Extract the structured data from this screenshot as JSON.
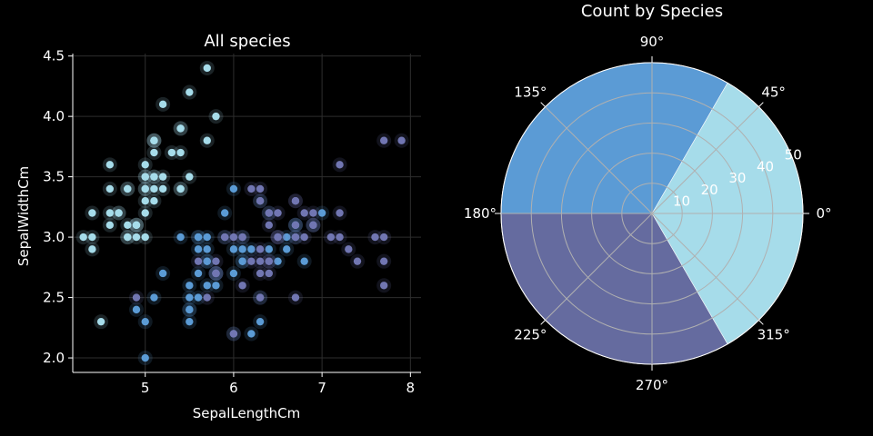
{
  "chart_data": [
    {
      "type": "scatter",
      "title": "All species",
      "xlabel": "SepalLengthCm",
      "ylabel": "SepalWidthCm",
      "xlim": [
        4.18,
        8.12
      ],
      "ylim": [
        1.88,
        4.52
      ],
      "xticks": [
        5,
        6,
        7,
        8
      ],
      "yticks": [
        2.0,
        2.5,
        3.0,
        3.5,
        4.0,
        4.5
      ],
      "xtick_labels": [
        "5",
        "6",
        "7",
        "8"
      ],
      "ytick_labels": [
        "2.0",
        "2.5",
        "3.0",
        "3.5",
        "4.0",
        "4.5"
      ],
      "grid": true,
      "series": [
        {
          "color": "#a6dcea",
          "points": [
            [
              5.1,
              3.5
            ],
            [
              4.9,
              3.0
            ],
            [
              4.7,
              3.2
            ],
            [
              4.6,
              3.1
            ],
            [
              5.0,
              3.6
            ],
            [
              5.4,
              3.9
            ],
            [
              4.6,
              3.4
            ],
            [
              5.0,
              3.4
            ],
            [
              4.4,
              2.9
            ],
            [
              4.9,
              3.1
            ],
            [
              5.4,
              3.7
            ],
            [
              4.8,
              3.4
            ],
            [
              4.8,
              3.0
            ],
            [
              4.3,
              3.0
            ],
            [
              5.8,
              4.0
            ],
            [
              5.7,
              4.4
            ],
            [
              5.4,
              3.9
            ],
            [
              5.1,
              3.5
            ],
            [
              5.7,
              3.8
            ],
            [
              5.1,
              3.8
            ],
            [
              5.4,
              3.4
            ],
            [
              5.1,
              3.7
            ],
            [
              4.6,
              3.6
            ],
            [
              5.1,
              3.3
            ],
            [
              4.8,
              3.4
            ],
            [
              5.0,
              3.0
            ],
            [
              5.0,
              3.4
            ],
            [
              5.2,
              3.5
            ],
            [
              5.2,
              3.4
            ],
            [
              4.7,
              3.2
            ],
            [
              4.8,
              3.1
            ],
            [
              5.4,
              3.4
            ],
            [
              5.2,
              4.1
            ],
            [
              5.5,
              4.2
            ],
            [
              4.9,
              3.1
            ],
            [
              5.0,
              3.2
            ],
            [
              5.5,
              3.5
            ],
            [
              4.9,
              3.1
            ],
            [
              4.4,
              3.0
            ],
            [
              5.1,
              3.4
            ],
            [
              5.0,
              3.5
            ],
            [
              4.5,
              2.3
            ],
            [
              4.4,
              3.2
            ],
            [
              5.0,
              3.5
            ],
            [
              5.1,
              3.8
            ],
            [
              4.8,
              3.0
            ],
            [
              5.1,
              3.8
            ],
            [
              4.6,
              3.2
            ],
            [
              5.3,
              3.7
            ],
            [
              5.0,
              3.3
            ]
          ]
        },
        {
          "color": "#5b9bd5",
          "points": [
            [
              7.0,
              3.2
            ],
            [
              6.4,
              3.2
            ],
            [
              6.9,
              3.1
            ],
            [
              5.5,
              2.3
            ],
            [
              6.5,
              2.8
            ],
            [
              5.7,
              2.8
            ],
            [
              6.3,
              3.3
            ],
            [
              4.9,
              2.4
            ],
            [
              6.6,
              2.9
            ],
            [
              5.2,
              2.7
            ],
            [
              5.0,
              2.0
            ],
            [
              5.9,
              3.0
            ],
            [
              6.0,
              2.2
            ],
            [
              6.1,
              2.9
            ],
            [
              5.6,
              2.9
            ],
            [
              6.7,
              3.1
            ],
            [
              5.6,
              3.0
            ],
            [
              5.8,
              2.7
            ],
            [
              6.2,
              2.2
            ],
            [
              5.6,
              2.5
            ],
            [
              5.9,
              3.2
            ],
            [
              6.1,
              2.8
            ],
            [
              6.3,
              2.5
            ],
            [
              6.1,
              2.8
            ],
            [
              6.4,
              2.9
            ],
            [
              6.6,
              3.0
            ],
            [
              6.8,
              2.8
            ],
            [
              6.7,
              3.0
            ],
            [
              6.0,
              2.9
            ],
            [
              5.7,
              2.6
            ],
            [
              5.5,
              2.4
            ],
            [
              5.5,
              2.4
            ],
            [
              5.8,
              2.7
            ],
            [
              6.0,
              2.7
            ],
            [
              5.4,
              3.0
            ],
            [
              6.0,
              3.4
            ],
            [
              6.7,
              3.1
            ],
            [
              6.3,
              2.3
            ],
            [
              5.6,
              3.0
            ],
            [
              5.5,
              2.5
            ],
            [
              5.5,
              2.6
            ],
            [
              6.1,
              3.0
            ],
            [
              5.8,
              2.6
            ],
            [
              5.0,
              2.3
            ],
            [
              5.6,
              2.7
            ],
            [
              5.7,
              3.0
            ],
            [
              5.7,
              2.9
            ],
            [
              6.2,
              2.9
            ],
            [
              5.1,
              2.5
            ],
            [
              5.7,
              2.8
            ]
          ]
        },
        {
          "color": "#7176b2",
          "points": [
            [
              6.3,
              3.3
            ],
            [
              5.8,
              2.7
            ],
            [
              7.1,
              3.0
            ],
            [
              6.3,
              2.9
            ],
            [
              6.5,
              3.0
            ],
            [
              7.6,
              3.0
            ],
            [
              4.9,
              2.5
            ],
            [
              7.3,
              2.9
            ],
            [
              6.7,
              2.5
            ],
            [
              7.2,
              3.6
            ],
            [
              6.5,
              3.2
            ],
            [
              6.4,
              2.7
            ],
            [
              6.8,
              3.0
            ],
            [
              5.7,
              2.5
            ],
            [
              5.8,
              2.8
            ],
            [
              6.4,
              3.2
            ],
            [
              6.5,
              3.0
            ],
            [
              7.7,
              3.8
            ],
            [
              7.7,
              2.6
            ],
            [
              6.0,
              2.2
            ],
            [
              6.9,
              3.2
            ],
            [
              5.6,
              2.8
            ],
            [
              7.7,
              2.8
            ],
            [
              6.3,
              2.7
            ],
            [
              6.7,
              3.3
            ],
            [
              7.2,
              3.2
            ],
            [
              6.2,
              2.8
            ],
            [
              6.1,
              3.0
            ],
            [
              6.4,
              2.8
            ],
            [
              7.2,
              3.0
            ],
            [
              7.4,
              2.8
            ],
            [
              7.9,
              3.8
            ],
            [
              6.4,
              2.8
            ],
            [
              6.3,
              2.8
            ],
            [
              6.1,
              2.6
            ],
            [
              7.7,
              3.0
            ],
            [
              6.3,
              3.4
            ],
            [
              6.4,
              3.1
            ],
            [
              6.0,
              3.0
            ],
            [
              6.9,
              3.1
            ],
            [
              6.7,
              3.1
            ],
            [
              6.9,
              3.1
            ],
            [
              5.8,
              2.7
            ],
            [
              6.8,
              3.2
            ],
            [
              6.7,
              3.3
            ],
            [
              6.7,
              3.0
            ],
            [
              6.3,
              2.5
            ],
            [
              6.5,
              3.0
            ],
            [
              6.2,
              3.4
            ],
            [
              5.9,
              3.0
            ]
          ]
        }
      ]
    },
    {
      "type": "pie",
      "subtype": "polar-bar",
      "title": "Count by Species",
      "values": [
        50,
        50,
        50
      ],
      "colors": [
        "#a6dcea",
        "#5b9bd5",
        "#656b9f"
      ],
      "rmax": 50,
      "rticks": [
        10,
        20,
        30,
        40,
        50
      ],
      "rtick_labels": [
        "10",
        "20",
        "30",
        "40",
        "50"
      ],
      "angle_labels": [
        "0°",
        "45°",
        "90°",
        "135°",
        "180°",
        "225°",
        "270°",
        "315°"
      ]
    }
  ]
}
